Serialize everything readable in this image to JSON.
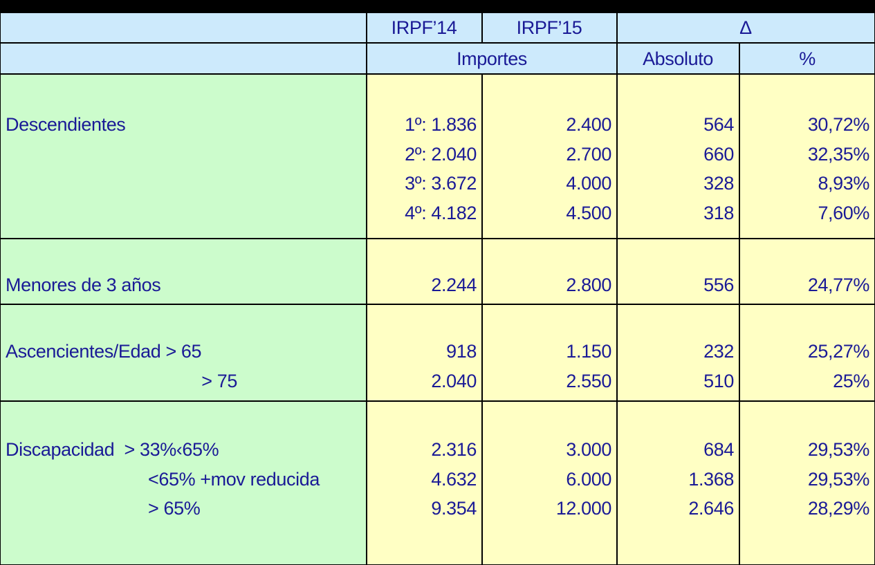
{
  "header": {
    "row1": [
      "IRPF’14",
      "IRPF’15",
      "Δ"
    ],
    "row2": [
      "Importes",
      "Absoluto",
      "%"
    ]
  },
  "groups": [
    {
      "rows": [
        {
          "label": "Descendientes",
          "cells": [
            "1º: 1.836",
            "2.400",
            "564",
            "30,72%"
          ]
        },
        {
          "label": null,
          "cells": [
            "2º: 2.040",
            "2.700",
            "660",
            "32,35%"
          ]
        },
        {
          "label": null,
          "cells": [
            "3º: 3.672",
            "4.000",
            "328",
            "8,93%"
          ]
        },
        {
          "label": null,
          "cells": [
            "4º: 4.182",
            "4.500",
            "318",
            "7,60%"
          ]
        }
      ]
    },
    {
      "rows": [
        {
          "label": "Menores de 3 años",
          "cells": [
            "2.244",
            "2.800",
            "556",
            "24,77%"
          ]
        }
      ]
    },
    {
      "rows": [
        {
          "label": "Ascencientes/Edad > 65",
          "cells": [
            "918",
            "1.150",
            "232",
            "25,27%"
          ]
        },
        {
          "label": "> 75",
          "cells": [
            "2.040",
            "2.550",
            "510",
            "25%"
          ]
        }
      ]
    },
    {
      "rows": [
        {
          "label": "Discapacidad  > 33%‹65%",
          "cells": [
            "2.316",
            "3.000",
            "684",
            "29,53%"
          ]
        },
        {
          "label": "<65% +mov reducida",
          "cells": [
            "4.632",
            "6.000",
            "1.368",
            "29,53%"
          ]
        },
        {
          "label": "> 65%",
          "cells": [
            "9.354",
            "12.000",
            "2.646",
            "28,29%"
          ]
        }
      ]
    }
  ]
}
